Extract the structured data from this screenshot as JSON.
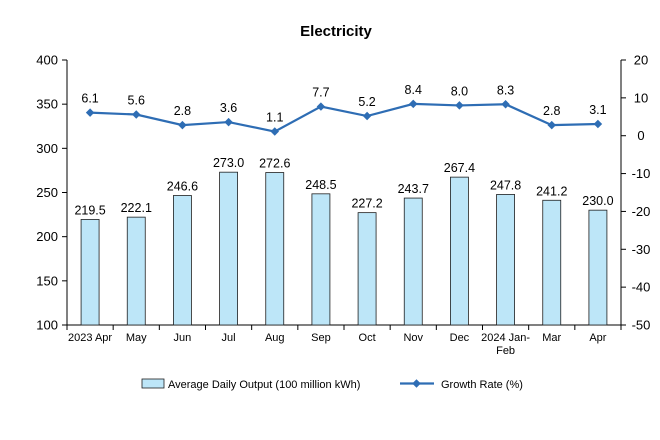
{
  "chart_data": {
    "type": "bar",
    "title": "Electricity",
    "categories": [
      "2023 Apr",
      "May",
      "Jun",
      "Jul",
      "Aug",
      "Sep",
      "Oct",
      "Nov",
      "Dec",
      "2024 Jan-Feb",
      "Mar",
      "Apr"
    ],
    "category_lines": [
      [
        "2023 Apr"
      ],
      [
        "May"
      ],
      [
        "Jun"
      ],
      [
        "Jul"
      ],
      [
        "Aug"
      ],
      [
        "Sep"
      ],
      [
        "Oct"
      ],
      [
        "Nov"
      ],
      [
        "Dec"
      ],
      [
        "2024 Jan-",
        "Feb"
      ],
      [
        "Mar"
      ],
      [
        "Apr"
      ]
    ],
    "series": [
      {
        "name": "Average Daily Output (100 million kWh)",
        "type": "bar",
        "axis": "left",
        "values": [
          219.5,
          222.1,
          246.6,
          273.0,
          272.6,
          248.5,
          227.2,
          243.7,
          267.4,
          247.8,
          241.2,
          230.0
        ],
        "labels": [
          "219.5",
          "222.1",
          "246.6",
          "273.0",
          "272.6",
          "248.5",
          "227.2",
          "243.7",
          "267.4",
          "247.8",
          "241.2",
          "230.0"
        ],
        "color": "#bde6f8"
      },
      {
        "name": "Growth Rate (%)",
        "type": "line",
        "axis": "right",
        "values": [
          6.1,
          5.6,
          2.8,
          3.6,
          1.1,
          7.7,
          5.2,
          8.4,
          8.0,
          8.3,
          2.8,
          3.1
        ],
        "labels": [
          "6.1",
          "5.6",
          "2.8",
          "3.6",
          "1.1",
          "7.7",
          "5.2",
          "8.4",
          "8.0",
          "8.3",
          "2.8",
          "3.1"
        ],
        "color": "#2e6db4"
      }
    ],
    "y_left": {
      "range": [
        100,
        400
      ],
      "ticks": [
        "100",
        "150",
        "200",
        "250",
        "300",
        "350",
        "400"
      ]
    },
    "y_right": {
      "range": [
        -50,
        20
      ],
      "ticks": [
        "-50",
        "-40",
        "-30",
        "-20",
        "-10",
        "0",
        "10",
        "20"
      ]
    },
    "grid": false,
    "legend": "bottom"
  }
}
